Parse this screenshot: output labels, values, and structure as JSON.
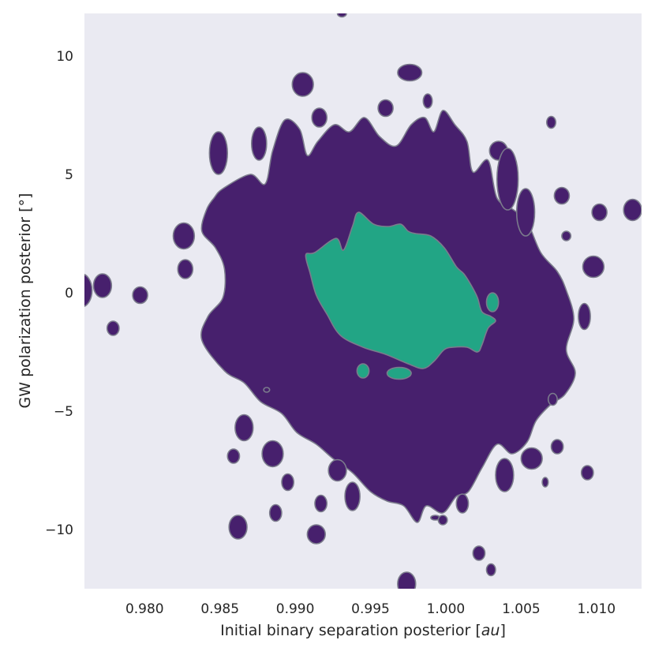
{
  "chart_data": {
    "type": "contour",
    "xlabel_main": "Initial binary separation posterior [",
    "xlabel_unit": "au",
    "xlabel_end": "]",
    "ylabel": "GW polarization posterior [°]",
    "xlim": [
      0.976,
      1.013
    ],
    "ylim": [
      -12.5,
      11.8
    ],
    "xticks": [
      0.98,
      0.985,
      0.99,
      0.995,
      1.0,
      1.005,
      1.01
    ],
    "xtick_labels": [
      "0.980",
      "0.985",
      "0.990",
      "0.995",
      "1.000",
      "1.005",
      "1.010"
    ],
    "yticks": [
      -10,
      -5,
      0,
      5,
      10
    ],
    "ytick_labels": [
      "−10",
      "−5",
      "0",
      "5",
      "10"
    ],
    "grid": false,
    "background_color": "#eaeaf2",
    "levels": [
      {
        "name": "outer",
        "color": "#47206d"
      },
      {
        "name": "inner",
        "color": "#22a585"
      }
    ],
    "inner_region": [
      [
        0.9913,
        1.7
      ],
      [
        0.9927,
        2.3
      ],
      [
        0.9932,
        1.8
      ],
      [
        0.9938,
        2.8
      ],
      [
        0.9942,
        3.4
      ],
      [
        0.9952,
        2.9
      ],
      [
        0.9962,
        2.8
      ],
      [
        0.997,
        2.9
      ],
      [
        0.9975,
        2.6
      ],
      [
        0.998,
        2.5
      ],
      [
        0.999,
        2.4
      ],
      [
        0.9999,
        1.9
      ],
      [
        1.0007,
        1.1
      ],
      [
        1.0012,
        0.8
      ],
      [
        1.0017,
        0.3
      ],
      [
        1.0021,
        -0.2
      ],
      [
        1.0024,
        -0.8
      ],
      [
        1.003,
        -1.0
      ],
      [
        1.0033,
        -1.2
      ],
      [
        1.0028,
        -1.5
      ],
      [
        1.0024,
        -2.2
      ],
      [
        1.0021,
        -2.5
      ],
      [
        1.0014,
        -2.3
      ],
      [
        1.0005,
        -2.3
      ],
      [
        0.9999,
        -2.4
      ],
      [
        0.9992,
        -2.9
      ],
      [
        0.9985,
        -3.2
      ],
      [
        0.9975,
        -3.0
      ],
      [
        0.996,
        -2.6
      ],
      [
        0.9945,
        -2.3
      ],
      [
        0.993,
        -1.8
      ],
      [
        0.9921,
        -0.9
      ],
      [
        0.9914,
        -0.1
      ],
      [
        0.991,
        0.8
      ],
      [
        0.9907,
        1.6
      ]
    ],
    "inner_islands": [
      {
        "x": 0.9945,
        "y": -3.3,
        "rx": 0.0004,
        "ry": 0.3
      },
      {
        "x": 0.9969,
        "y": -3.4,
        "rx": 0.0008,
        "ry": 0.25
      },
      {
        "x": 1.0031,
        "y": -0.4,
        "rx": 0.0004,
        "ry": 0.4
      }
    ],
    "outer_region": [
      [
        0.9852,
        4.4
      ],
      [
        0.987,
        5.0
      ],
      [
        0.988,
        4.6
      ],
      [
        0.9885,
        6.0
      ],
      [
        0.9893,
        7.3
      ],
      [
        0.9903,
        6.9
      ],
      [
        0.9908,
        5.8
      ],
      [
        0.9915,
        6.4
      ],
      [
        0.9926,
        7.1
      ],
      [
        0.9936,
        6.8
      ],
      [
        0.9946,
        7.4
      ],
      [
        0.9956,
        6.6
      ],
      [
        0.9967,
        6.2
      ],
      [
        0.9977,
        7.1
      ],
      [
        0.9986,
        7.4
      ],
      [
        0.9992,
        6.8
      ],
      [
        0.9998,
        7.7
      ],
      [
        1.0006,
        7.1
      ],
      [
        1.0014,
        6.4
      ],
      [
        1.0018,
        5.1
      ],
      [
        1.0028,
        5.6
      ],
      [
        1.0034,
        4.0
      ],
      [
        1.0045,
        3.5
      ],
      [
        1.0054,
        3.0
      ],
      [
        1.0063,
        1.7
      ],
      [
        1.0074,
        0.9
      ],
      [
        1.008,
        0.1
      ],
      [
        1.0085,
        -1.1
      ],
      [
        1.008,
        -2.4
      ],
      [
        1.0086,
        -3.4
      ],
      [
        1.0079,
        -4.3
      ],
      [
        1.007,
        -4.7
      ],
      [
        1.006,
        -5.4
      ],
      [
        1.0054,
        -6.3
      ],
      [
        1.0044,
        -6.8
      ],
      [
        1.0034,
        -6.4
      ],
      [
        1.0024,
        -7.4
      ],
      [
        1.0015,
        -8.4
      ],
      [
        1.0007,
        -8.6
      ],
      [
        0.9998,
        -9.3
      ],
      [
        0.9987,
        -9.0
      ],
      [
        0.9981,
        -9.7
      ],
      [
        0.9972,
        -9.0
      ],
      [
        0.9961,
        -8.8
      ],
      [
        0.995,
        -8.4
      ],
      [
        0.9938,
        -7.6
      ],
      [
        0.9925,
        -7.0
      ],
      [
        0.9914,
        -6.4
      ],
      [
        0.9901,
        -5.9
      ],
      [
        0.9891,
        -5.1
      ],
      [
        0.9877,
        -4.6
      ],
      [
        0.9866,
        -3.8
      ],
      [
        0.9853,
        -3.3
      ],
      [
        0.9838,
        -2.0
      ],
      [
        0.9842,
        -1.0
      ],
      [
        0.9852,
        -0.2
      ],
      [
        0.9853,
        1.0
      ],
      [
        0.9847,
        1.9
      ],
      [
        0.9838,
        2.6
      ],
      [
        0.9841,
        3.5
      ],
      [
        0.9846,
        4.0
      ]
    ],
    "outer_islands": [
      {
        "x": 0.9758,
        "y": 0.1,
        "rx": 0.0007,
        "ry": 0.7
      },
      {
        "x": 0.9772,
        "y": 0.3,
        "rx": 0.0006,
        "ry": 0.5
      },
      {
        "x": 0.9779,
        "y": -1.5,
        "rx": 0.0004,
        "ry": 0.3
      },
      {
        "x": 0.9797,
        "y": -0.1,
        "rx": 0.0005,
        "ry": 0.35
      },
      {
        "x": 0.9826,
        "y": 2.4,
        "rx": 0.0007,
        "ry": 0.55
      },
      {
        "x": 0.9827,
        "y": 1.0,
        "rx": 0.0005,
        "ry": 0.4
      },
      {
        "x": 0.9849,
        "y": 5.9,
        "rx": 0.0006,
        "ry": 0.9
      },
      {
        "x": 0.9876,
        "y": 6.3,
        "rx": 0.0005,
        "ry": 0.7
      },
      {
        "x": 0.9905,
        "y": 8.8,
        "rx": 0.0007,
        "ry": 0.5
      },
      {
        "x": 0.9916,
        "y": 7.4,
        "rx": 0.0005,
        "ry": 0.4
      },
      {
        "x": 0.996,
        "y": 7.8,
        "rx": 0.0005,
        "ry": 0.35
      },
      {
        "x": 0.9976,
        "y": 9.3,
        "rx": 0.0008,
        "ry": 0.35
      },
      {
        "x": 0.9988,
        "y": 8.1,
        "rx": 0.0003,
        "ry": 0.3
      },
      {
        "x": 1.0035,
        "y": 6.0,
        "rx": 0.0006,
        "ry": 0.4
      },
      {
        "x": 1.0041,
        "y": 4.8,
        "rx": 0.0007,
        "ry": 1.3
      },
      {
        "x": 1.0053,
        "y": 3.4,
        "rx": 0.0006,
        "ry": 1.0
      },
      {
        "x": 1.007,
        "y": 7.2,
        "rx": 0.0003,
        "ry": 0.25
      },
      {
        "x": 1.0077,
        "y": 4.1,
        "rx": 0.0005,
        "ry": 0.35
      },
      {
        "x": 1.008,
        "y": 2.4,
        "rx": 0.0003,
        "ry": 0.2
      },
      {
        "x": 1.0102,
        "y": 3.4,
        "rx": 0.0005,
        "ry": 0.35
      },
      {
        "x": 1.0124,
        "y": 3.5,
        "rx": 0.0006,
        "ry": 0.45
      },
      {
        "x": 1.0098,
        "y": 1.1,
        "rx": 0.0007,
        "ry": 0.45
      },
      {
        "x": 1.0092,
        "y": -1.0,
        "rx": 0.0004,
        "ry": 0.55
      },
      {
        "x": 1.0071,
        "y": -4.5,
        "rx": 0.0003,
        "ry": 0.25
      },
      {
        "x": 1.0074,
        "y": -6.5,
        "rx": 0.0004,
        "ry": 0.3
      },
      {
        "x": 1.0094,
        "y": -7.6,
        "rx": 0.0004,
        "ry": 0.3
      },
      {
        "x": 1.0066,
        "y": -8.0,
        "rx": 0.0002,
        "ry": 0.2
      },
      {
        "x": 1.0057,
        "y": -7.0,
        "rx": 0.0007,
        "ry": 0.45
      },
      {
        "x": 1.0039,
        "y": -7.7,
        "rx": 0.0006,
        "ry": 0.7
      },
      {
        "x": 1.0011,
        "y": -8.9,
        "rx": 0.0004,
        "ry": 0.4
      },
      {
        "x": 0.9993,
        "y": -9.5,
        "rx": 0.0003,
        "ry": 0.1
      },
      {
        "x": 0.9998,
        "y": -9.6,
        "rx": 0.0003,
        "ry": 0.2
      },
      {
        "x": 1.0022,
        "y": -11.0,
        "rx": 0.0004,
        "ry": 0.3
      },
      {
        "x": 1.003,
        "y": -11.7,
        "rx": 0.0003,
        "ry": 0.25
      },
      {
        "x": 0.9974,
        "y": -12.3,
        "rx": 0.0006,
        "ry": 0.5
      },
      {
        "x": 0.9938,
        "y": -8.6,
        "rx": 0.0005,
        "ry": 0.6
      },
      {
        "x": 0.9928,
        "y": -7.5,
        "rx": 0.0006,
        "ry": 0.45
      },
      {
        "x": 0.9917,
        "y": -8.9,
        "rx": 0.0004,
        "ry": 0.35
      },
      {
        "x": 0.9914,
        "y": -10.2,
        "rx": 0.0006,
        "ry": 0.4
      },
      {
        "x": 0.9895,
        "y": -8.0,
        "rx": 0.0004,
        "ry": 0.35
      },
      {
        "x": 0.9885,
        "y": -6.8,
        "rx": 0.0007,
        "ry": 0.55
      },
      {
        "x": 0.9887,
        "y": -9.3,
        "rx": 0.0004,
        "ry": 0.35
      },
      {
        "x": 0.9866,
        "y": -5.7,
        "rx": 0.0006,
        "ry": 0.55
      },
      {
        "x": 0.9859,
        "y": -6.9,
        "rx": 0.0004,
        "ry": 0.3
      },
      {
        "x": 0.9862,
        "y": -9.9,
        "rx": 0.0006,
        "ry": 0.5
      },
      {
        "x": 0.9881,
        "y": -4.1,
        "rx": 0.0002,
        "ry": 0.1
      },
      {
        "x": 0.9931,
        "y": 11.8,
        "rx": 0.0003,
        "ry": 0.15
      }
    ]
  }
}
